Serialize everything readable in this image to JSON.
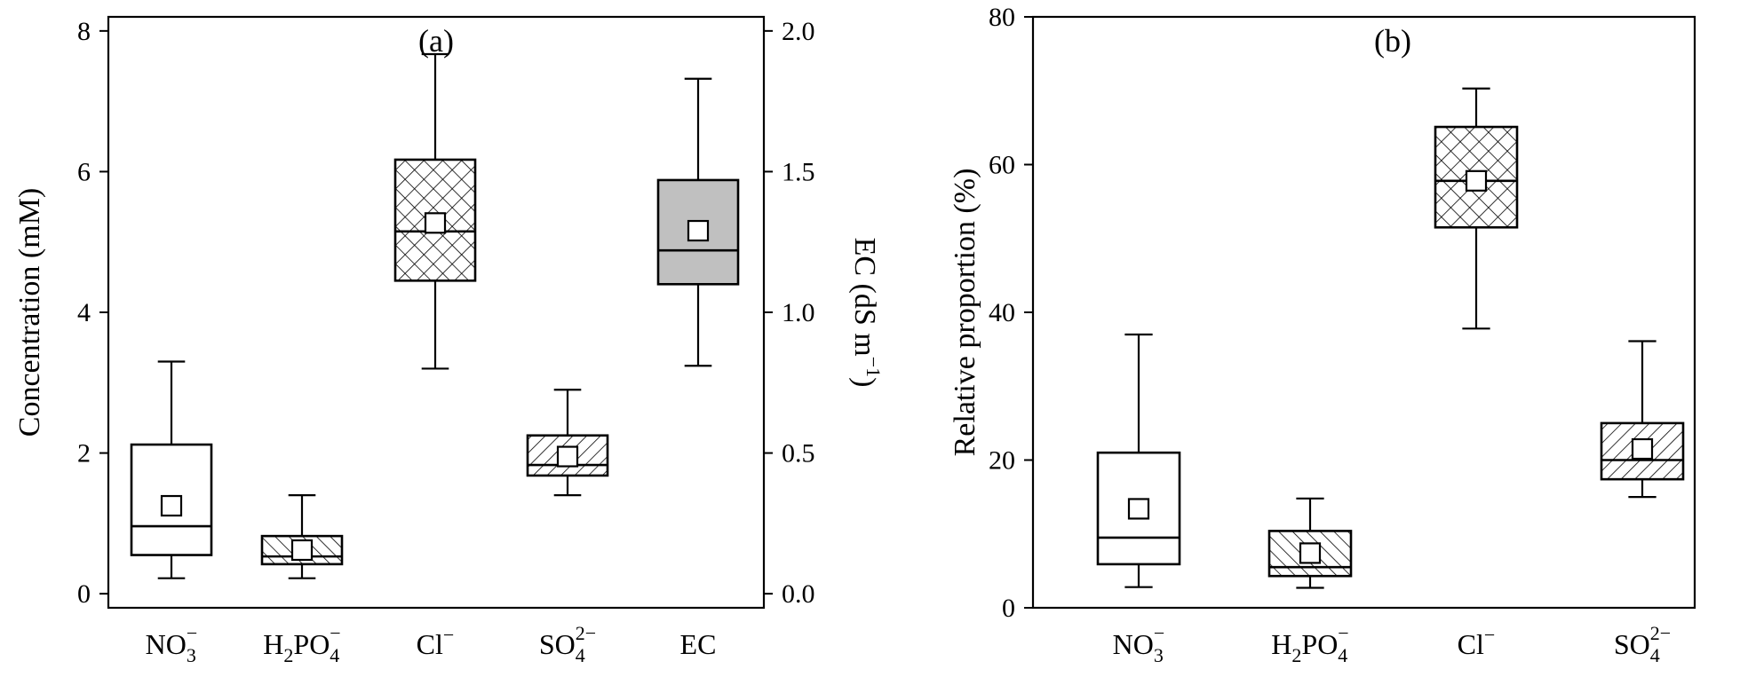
{
  "chart_data": [
    {
      "type": "box",
      "panel_label": "(a)",
      "ylabel": "Concentration (mM)",
      "ylim": [
        -0.2,
        8.2
      ],
      "yticks": [
        0,
        2,
        4,
        6,
        8
      ],
      "y2label": {
        "pre": "EC (dS m",
        "sup": "−1",
        "post": ")"
      },
      "y2lim": [
        -0.05,
        2.05
      ],
      "y2ticks": [
        0.0,
        0.5,
        1.0,
        1.5,
        2.0
      ],
      "y2tick_labels": [
        "0.0",
        "0.5",
        "1.0",
        "1.5",
        "2.0"
      ],
      "categories": [
        {
          "base": "NO",
          "sub": "3",
          "sup": "−",
          "after": "",
          "fill": "none",
          "axis": "left",
          "whisker_low": 0.22,
          "q1": 0.55,
          "median": 0.96,
          "q3": 2.12,
          "whisker_high": 3.3,
          "mean": 1.25
        },
        {
          "base": "H",
          "sub": "2",
          "sup": "",
          "after": "PO",
          "sub2": "4",
          "sup2": "−",
          "fill": "diag_left",
          "axis": "left",
          "whisker_low": 0.22,
          "q1": 0.42,
          "median": 0.53,
          "q3": 0.82,
          "whisker_high": 1.4,
          "mean": 0.62
        },
        {
          "base": "Cl",
          "sub": "",
          "sup": "−",
          "after": "",
          "fill": "crosshatch",
          "axis": "left",
          "whisker_low": 3.2,
          "q1": 4.45,
          "median": 5.15,
          "q3": 6.17,
          "whisker_high": 7.67,
          "mean": 5.27
        },
        {
          "base": "SO",
          "sub": "4",
          "sup": "2−",
          "after": "",
          "fill": "diag_right",
          "axis": "left",
          "whisker_low": 1.4,
          "q1": 1.68,
          "median": 1.83,
          "q3": 2.25,
          "whisker_high": 2.9,
          "mean": 1.95
        },
        {
          "base": "EC",
          "sub": "",
          "sup": "",
          "after": "",
          "fill": "gray",
          "axis": "right",
          "whisker_low": 0.81,
          "q1": 1.1,
          "median": 1.22,
          "q3": 1.47,
          "whisker_high": 1.83,
          "mean": 1.29
        }
      ]
    },
    {
      "type": "box",
      "panel_label": "(b)",
      "ylabel": "Relative proportion (%)",
      "ylim": [
        0,
        80
      ],
      "yticks": [
        0,
        20,
        40,
        60,
        80
      ],
      "categories": [
        {
          "base": "NO",
          "sub": "3",
          "sup": "−",
          "after": "",
          "fill": "none",
          "whisker_low": 2.8,
          "q1": 5.9,
          "median": 9.5,
          "q3": 21.0,
          "whisker_high": 37.0,
          "mean": 13.4
        },
        {
          "base": "H",
          "sub": "2",
          "sup": "",
          "after": "PO",
          "sub2": "4",
          "sup2": "−",
          "fill": "diag_left",
          "whisker_low": 2.7,
          "q1": 4.3,
          "median": 5.5,
          "q3": 10.4,
          "whisker_high": 14.8,
          "mean": 7.4
        },
        {
          "base": "Cl",
          "sub": "",
          "sup": "−",
          "after": "",
          "fill": "crosshatch",
          "whisker_low": 37.8,
          "q1": 51.5,
          "median": 57.8,
          "q3": 65.1,
          "whisker_high": 70.3,
          "mean": 57.8
        },
        {
          "base": "SO",
          "sub": "4",
          "sup": "2−",
          "after": "",
          "fill": "diag_right",
          "whisker_low": 15.0,
          "q1": 17.4,
          "median": 20.0,
          "q3": 25.0,
          "whisker_high": 36.1,
          "mean": 21.5
        }
      ]
    }
  ]
}
